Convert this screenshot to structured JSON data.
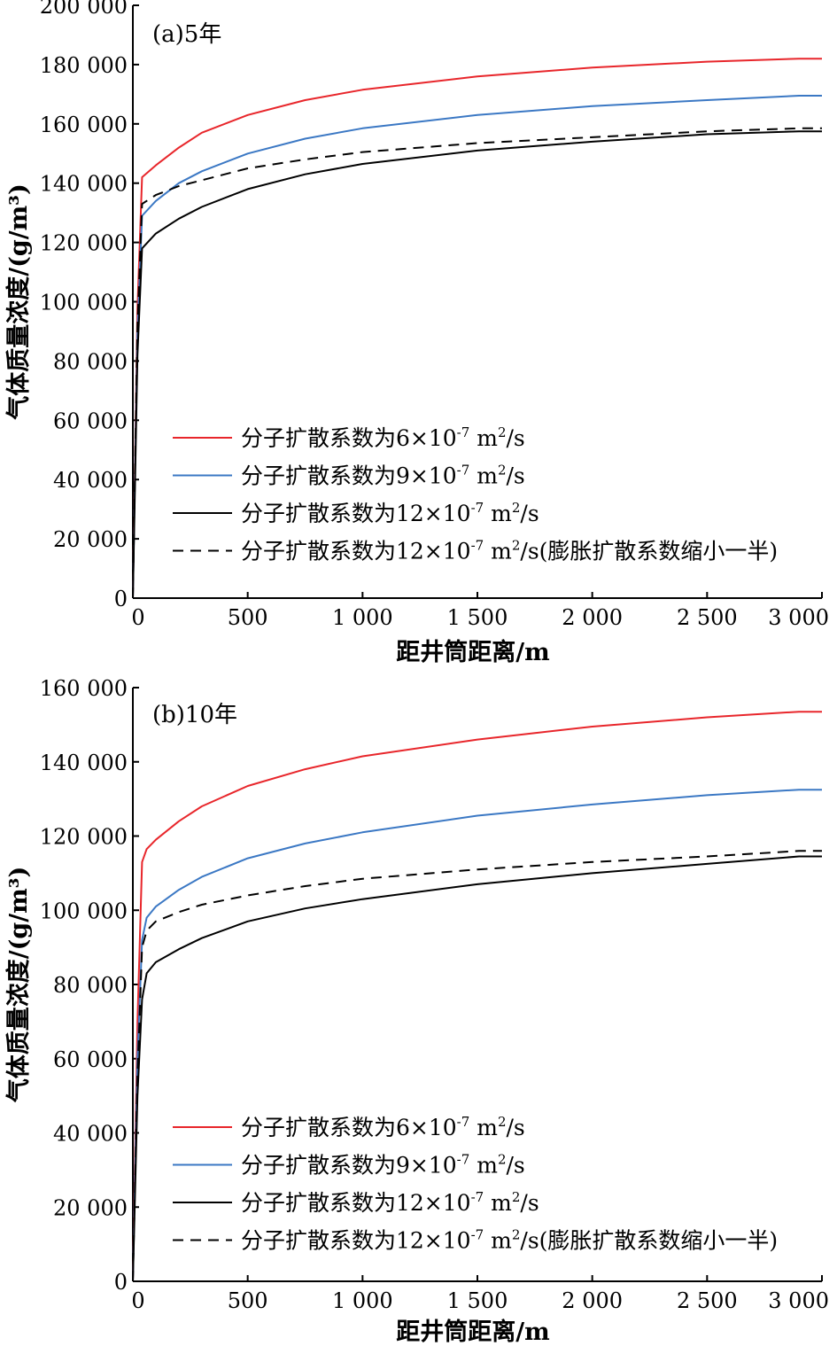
{
  "chart_data": [
    {
      "type": "line",
      "panel_label": "(a)5年",
      "xlabel": "距井筒距离/m",
      "ylabel": "气体质量浓度/(g/m³)",
      "xlim": [
        0,
        3000
      ],
      "ylim": [
        0,
        200000
      ],
      "xticks": [
        0,
        500,
        1000,
        1500,
        2000,
        2500,
        3000
      ],
      "xtick_labels": [
        "0",
        "500",
        "1 000",
        "1 500",
        "2 000",
        "2 500",
        "3 000"
      ],
      "yticks": [
        0,
        20000,
        40000,
        60000,
        80000,
        100000,
        120000,
        140000,
        160000,
        180000,
        200000
      ],
      "ytick_labels": [
        "0",
        "20 000",
        "40 000",
        "60 000",
        "80 000",
        "100 000",
        "120 000",
        "140 000",
        "160 000",
        "180 000",
        "200 000"
      ],
      "grid": false,
      "legend_position": "center-right",
      "series": [
        {
          "legend_prefix": "分子扩散系数为6×10",
          "exp": "-7",
          "unit_m": " m",
          "unit_exp": "2",
          "unit_tail": "/s",
          "suffix": "",
          "color": "#e8262b",
          "dash": "solid",
          "x": [
            0,
            20,
            40,
            100,
            200,
            300,
            500,
            750,
            1000,
            1500,
            2000,
            2500,
            2900,
            3000
          ],
          "y": [
            0,
            98000,
            142000,
            146000,
            152000,
            157000,
            163000,
            168000,
            171500,
            176000,
            179000,
            181000,
            182000,
            182000
          ]
        },
        {
          "legend_prefix": "分子扩散系数为9×10",
          "exp": "-7",
          "unit_m": " m",
          "unit_exp": "2",
          "unit_tail": "/s",
          "suffix": "",
          "color": "#3b78c4",
          "dash": "solid",
          "x": [
            0,
            20,
            40,
            100,
            200,
            300,
            500,
            750,
            1000,
            1500,
            2000,
            2500,
            2900,
            3000
          ],
          "y": [
            0,
            90000,
            129000,
            134000,
            140000,
            144000,
            150000,
            155000,
            158500,
            163000,
            166000,
            168000,
            169500,
            169500
          ]
        },
        {
          "legend_prefix": "分子扩散系数为12×10",
          "exp": "-7",
          "unit_m": " m",
          "unit_exp": "2",
          "unit_tail": "/s",
          "suffix": "",
          "color": "#000000",
          "dash": "solid",
          "x": [
            0,
            20,
            40,
            100,
            200,
            300,
            500,
            750,
            1000,
            1500,
            2000,
            2500,
            2900,
            3000
          ],
          "y": [
            0,
            82000,
            118000,
            123000,
            128000,
            132000,
            138000,
            143000,
            146500,
            151000,
            154000,
            156500,
            157500,
            157500
          ]
        },
        {
          "legend_prefix": "分子扩散系数为12×10",
          "exp": "-7",
          "unit_m": " m",
          "unit_exp": "2",
          "unit_tail": "/s",
          "suffix": "(膨胀扩散系数缩小一半)",
          "color": "#000000",
          "dash": "dashed",
          "x": [
            0,
            20,
            40,
            100,
            200,
            300,
            500,
            750,
            1000,
            1500,
            2000,
            2500,
            2900,
            3000
          ],
          "y": [
            0,
            92000,
            133000,
            136000,
            139000,
            141000,
            145000,
            148000,
            150500,
            153500,
            155500,
            157500,
            158500,
            158500
          ]
        }
      ]
    },
    {
      "type": "line",
      "panel_label": "(b)10年",
      "xlabel": "距井筒距离/m",
      "ylabel": "气体质量浓度/(g/m³)",
      "xlim": [
        0,
        3000
      ],
      "ylim": [
        0,
        160000
      ],
      "xticks": [
        0,
        500,
        1000,
        1500,
        2000,
        2500,
        3000
      ],
      "xtick_labels": [
        "0",
        "500",
        "1 000",
        "1 500",
        "2 000",
        "2 500",
        "3 000"
      ],
      "yticks": [
        0,
        20000,
        40000,
        60000,
        80000,
        100000,
        120000,
        140000,
        160000
      ],
      "ytick_labels": [
        "0",
        "20 000",
        "40 000",
        "60 000",
        "80 000",
        "100 000",
        "120 000",
        "140 000",
        "160 000"
      ],
      "grid": false,
      "legend_position": "center-right",
      "series": [
        {
          "legend_prefix": "分子扩散系数为6×10",
          "exp": "-7",
          "unit_m": " m",
          "unit_exp": "2",
          "unit_tail": "/s",
          "suffix": "",
          "color": "#e8262b",
          "dash": "solid",
          "x": [
            0,
            20,
            40,
            60,
            100,
            200,
            300,
            500,
            750,
            1000,
            1500,
            2000,
            2500,
            2900,
            3000
          ],
          "y": [
            0,
            70000,
            113000,
            116500,
            119000,
            124000,
            128000,
            133500,
            138000,
            141500,
            146000,
            149500,
            152000,
            153500,
            153500
          ]
        },
        {
          "legend_prefix": "分子扩散系数为9×10",
          "exp": "-7",
          "unit_m": " m",
          "unit_exp": "2",
          "unit_tail": "/s",
          "suffix": "",
          "color": "#3b78c4",
          "dash": "solid",
          "x": [
            0,
            20,
            40,
            60,
            100,
            200,
            300,
            500,
            750,
            1000,
            1500,
            2000,
            2500,
            2900,
            3000
          ],
          "y": [
            0,
            60000,
            92000,
            98000,
            101000,
            105500,
            109000,
            114000,
            118000,
            121000,
            125500,
            128500,
            131000,
            132500,
            132500
          ]
        },
        {
          "legend_prefix": "分子扩散系数为12×10",
          "exp": "-7",
          "unit_m": " m",
          "unit_exp": "2",
          "unit_tail": "/s",
          "suffix": "",
          "color": "#000000",
          "dash": "solid",
          "x": [
            0,
            20,
            40,
            60,
            100,
            200,
            300,
            500,
            750,
            1000,
            1500,
            2000,
            2500,
            2900,
            3000
          ],
          "y": [
            0,
            50000,
            76000,
            83000,
            86000,
            89500,
            92500,
            97000,
            100500,
            103000,
            107000,
            110000,
            112500,
            114500,
            114500
          ]
        },
        {
          "legend_prefix": "分子扩散系数为12×10",
          "exp": "-7",
          "unit_m": " m",
          "unit_exp": "2",
          "unit_tail": "/s",
          "suffix": "(膨胀扩散系数缩小一半)",
          "color": "#000000",
          "dash": "dashed",
          "x": [
            0,
            20,
            40,
            60,
            100,
            200,
            300,
            500,
            750,
            1000,
            1500,
            2000,
            2500,
            2900,
            3000
          ],
          "y": [
            0,
            55000,
            90000,
            94500,
            97000,
            99500,
            101500,
            104000,
            106500,
            108500,
            111000,
            113000,
            114500,
            116000,
            116000
          ]
        }
      ]
    }
  ]
}
